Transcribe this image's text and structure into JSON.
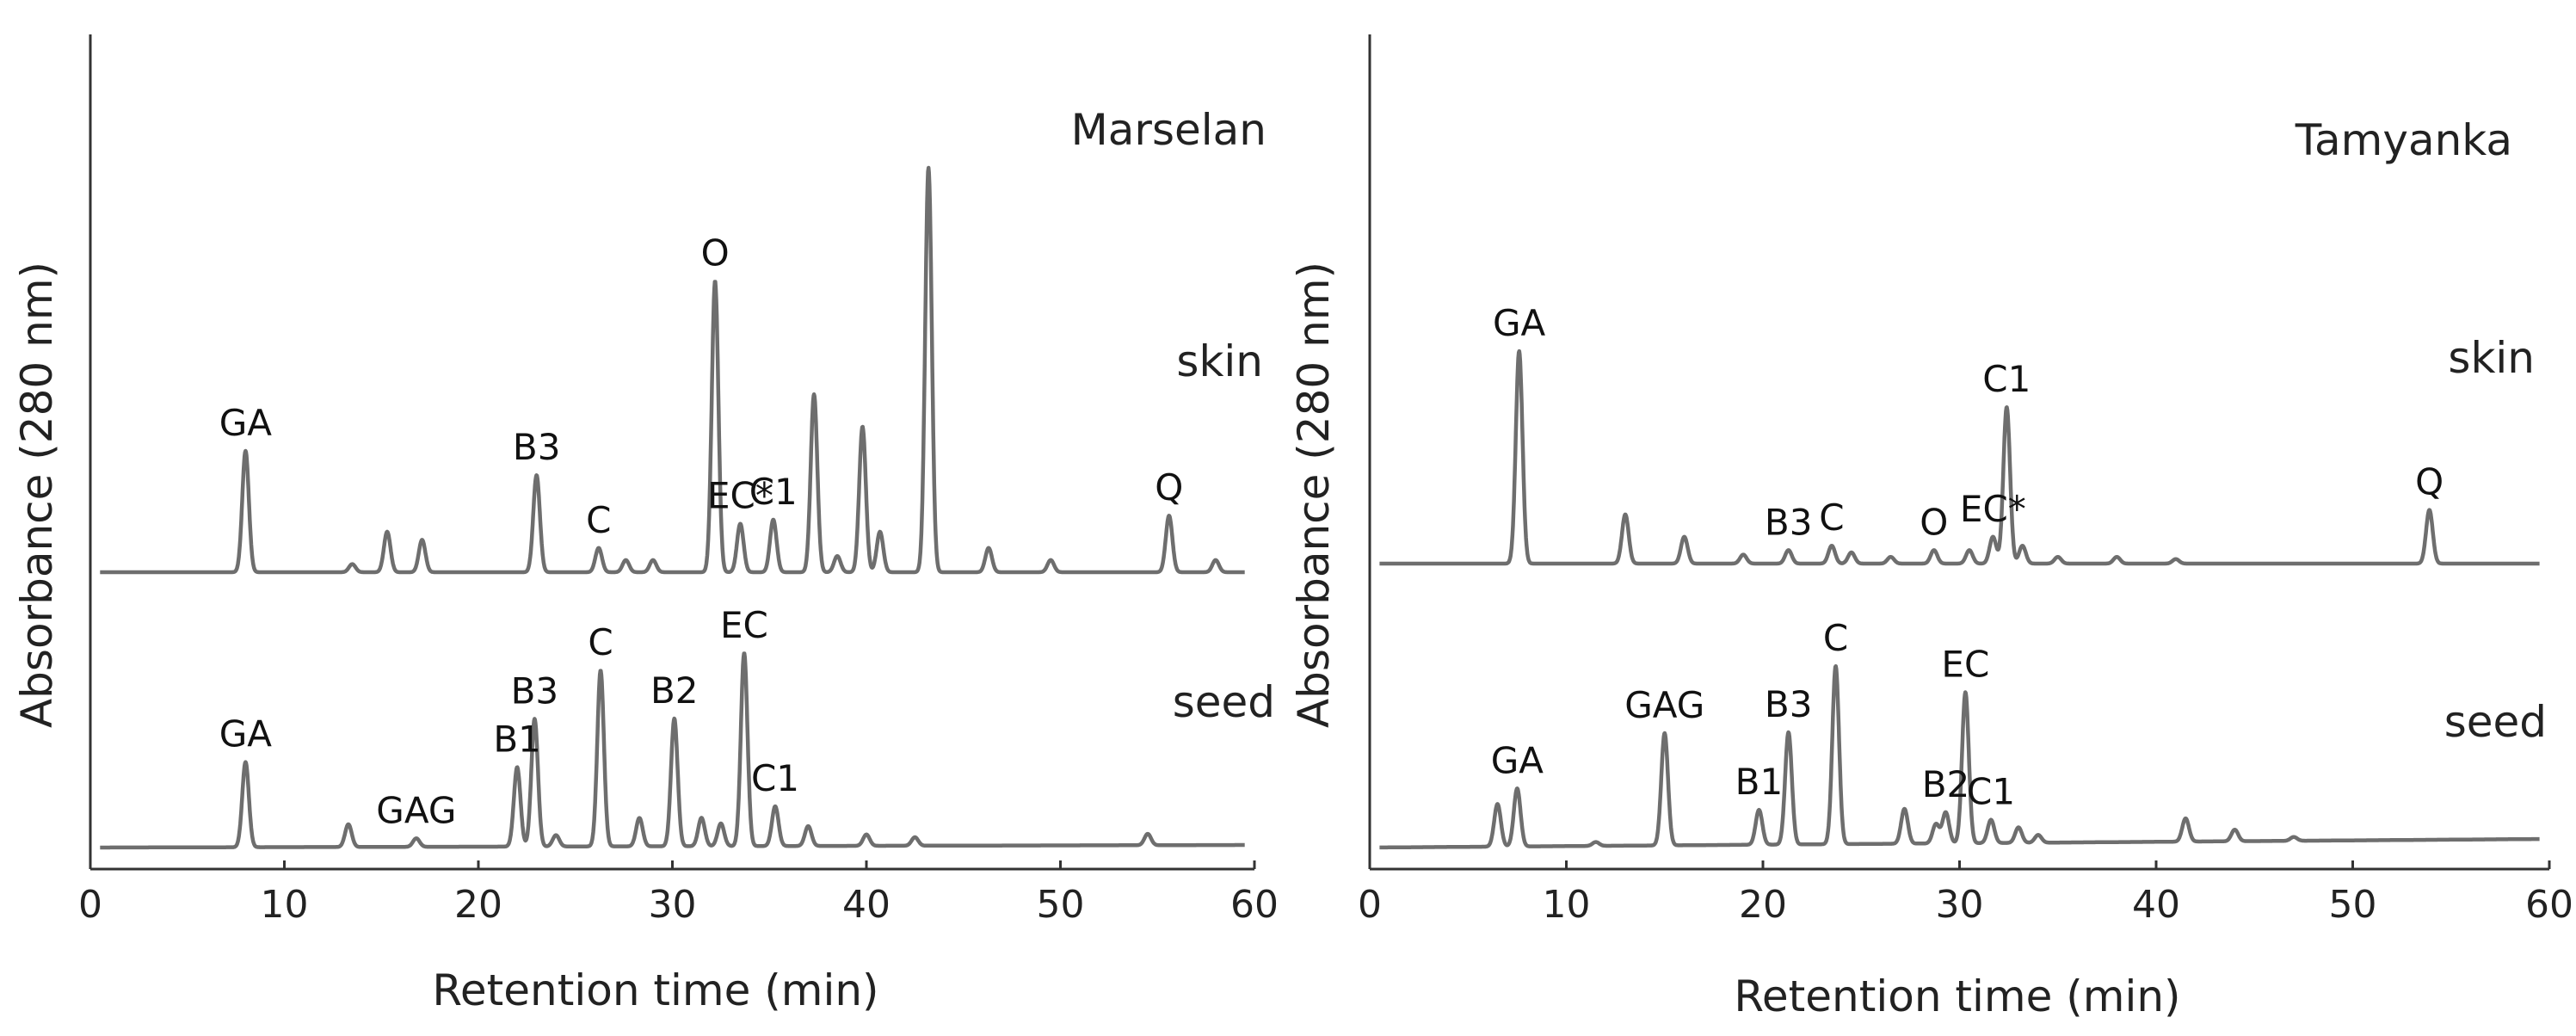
{
  "chart_data": [
    {
      "type": "line",
      "title": "Marselan",
      "xlabel": "Retention time (min)",
      "ylabel": "Absorbance (280 nm)",
      "xlim": [
        0,
        60
      ],
      "xticks": [
        "0",
        "10",
        "20",
        "30",
        "40",
        "50",
        "60"
      ],
      "grid": false,
      "series": [
        {
          "name": "skin",
          "peaks": [
            {
              "x": 8.0,
              "h": 0.3,
              "label": "GA"
            },
            {
              "x": 13.5,
              "h": 0.02
            },
            {
              "x": 15.3,
              "h": 0.1
            },
            {
              "x": 17.1,
              "h": 0.08
            },
            {
              "x": 23.0,
              "h": 0.24,
              "label": "B3"
            },
            {
              "x": 26.2,
              "h": 0.06,
              "label": "C"
            },
            {
              "x": 27.6,
              "h": 0.03
            },
            {
              "x": 29.0,
              "h": 0.03
            },
            {
              "x": 32.2,
              "h": 0.72,
              "label": "O"
            },
            {
              "x": 33.5,
              "h": 0.12,
              "label": "EC*"
            },
            {
              "x": 35.2,
              "h": 0.13,
              "label": "C1"
            },
            {
              "x": 37.3,
              "h": 0.44
            },
            {
              "x": 38.5,
              "h": 0.04
            },
            {
              "x": 39.8,
              "h": 0.36
            },
            {
              "x": 40.7,
              "h": 0.1
            },
            {
              "x": 43.2,
              "h": 1.0
            },
            {
              "x": 46.3,
              "h": 0.06
            },
            {
              "x": 49.5,
              "h": 0.03
            },
            {
              "x": 55.6,
              "h": 0.14,
              "label": "Q"
            },
            {
              "x": 58.0,
              "h": 0.03
            }
          ]
        },
        {
          "name": "seed",
          "peaks": [
            {
              "x": 8.0,
              "h": 0.3,
              "label": "GA"
            },
            {
              "x": 13.3,
              "h": 0.08
            },
            {
              "x": 16.8,
              "h": 0.03,
              "label": "GAG"
            },
            {
              "x": 22.0,
              "h": 0.28,
              "label": "B1"
            },
            {
              "x": 22.9,
              "h": 0.45,
              "label": "B3"
            },
            {
              "x": 24.0,
              "h": 0.04
            },
            {
              "x": 26.3,
              "h": 0.62,
              "label": "C"
            },
            {
              "x": 28.3,
              "h": 0.1
            },
            {
              "x": 30.1,
              "h": 0.45,
              "label": "B2"
            },
            {
              "x": 31.5,
              "h": 0.1
            },
            {
              "x": 32.5,
              "h": 0.08
            },
            {
              "x": 33.7,
              "h": 0.68,
              "label": "EC"
            },
            {
              "x": 35.3,
              "h": 0.14,
              "label": "C1"
            },
            {
              "x": 37.0,
              "h": 0.07
            },
            {
              "x": 40.0,
              "h": 0.04
            },
            {
              "x": 42.5,
              "h": 0.03
            },
            {
              "x": 54.5,
              "h": 0.04
            }
          ]
        }
      ]
    },
    {
      "type": "line",
      "title": "Tamyanka",
      "xlabel": "Retention time (min)",
      "ylabel": "Absorbance (280 nm)",
      "xlim": [
        0,
        60
      ],
      "xticks": [
        "0",
        "10",
        "20",
        "30",
        "40",
        "50",
        "60"
      ],
      "grid": false,
      "series": [
        {
          "name": "skin",
          "peaks": [
            {
              "x": 7.6,
              "h": 0.95,
              "label": "GA"
            },
            {
              "x": 13.0,
              "h": 0.22
            },
            {
              "x": 16.0,
              "h": 0.12
            },
            {
              "x": 19.0,
              "h": 0.04
            },
            {
              "x": 21.3,
              "h": 0.06,
              "label": "B3"
            },
            {
              "x": 23.5,
              "h": 0.08,
              "label": "C"
            },
            {
              "x": 24.5,
              "h": 0.05
            },
            {
              "x": 26.5,
              "h": 0.03
            },
            {
              "x": 28.7,
              "h": 0.06,
              "label": "O"
            },
            {
              "x": 30.5,
              "h": 0.06
            },
            {
              "x": 31.7,
              "h": 0.12,
              "label": "EC*"
            },
            {
              "x": 32.4,
              "h": 0.7,
              "label": "C1"
            },
            {
              "x": 33.2,
              "h": 0.08
            },
            {
              "x": 35.0,
              "h": 0.03
            },
            {
              "x": 38.0,
              "h": 0.03
            },
            {
              "x": 41.0,
              "h": 0.02
            },
            {
              "x": 53.9,
              "h": 0.24,
              "label": "Q"
            }
          ]
        },
        {
          "name": "seed",
          "peaks": [
            {
              "x": 6.5,
              "h": 0.22
            },
            {
              "x": 7.5,
              "h": 0.3,
              "label": "GA"
            },
            {
              "x": 11.5,
              "h": 0.02
            },
            {
              "x": 15.0,
              "h": 0.58,
              "label": "GAG"
            },
            {
              "x": 19.8,
              "h": 0.18,
              "label": "B1"
            },
            {
              "x": 21.3,
              "h": 0.58,
              "label": "B3"
            },
            {
              "x": 23.7,
              "h": 0.92,
              "label": "C"
            },
            {
              "x": 27.2,
              "h": 0.18
            },
            {
              "x": 28.8,
              "h": 0.1
            },
            {
              "x": 29.3,
              "h": 0.16,
              "label": "B2"
            },
            {
              "x": 30.3,
              "h": 0.78,
              "label": "EC"
            },
            {
              "x": 31.6,
              "h": 0.12,
              "label": "C1"
            },
            {
              "x": 33.0,
              "h": 0.08
            },
            {
              "x": 34.0,
              "h": 0.04
            },
            {
              "x": 41.5,
              "h": 0.12
            },
            {
              "x": 44.0,
              "h": 0.06
            },
            {
              "x": 47.0,
              "h": 0.02
            }
          ]
        }
      ]
    }
  ]
}
